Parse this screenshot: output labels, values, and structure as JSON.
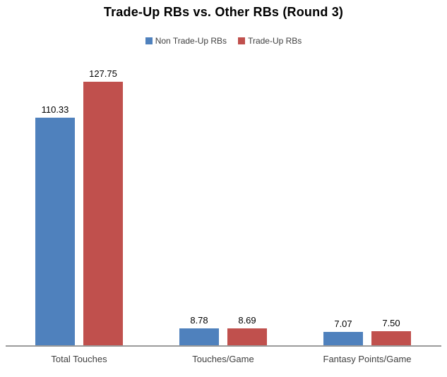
{
  "title": "Trade-Up RBs vs. Other RBs (Round 3)",
  "legend": {
    "items": [
      {
        "label": "Non Trade-Up RBs",
        "color": "#4F81BD"
      },
      {
        "label": "Trade-Up RBs",
        "color": "#C0504D"
      }
    ]
  },
  "chart_data": {
    "type": "bar",
    "title": "Trade-Up RBs vs. Other RBs (Round 3)",
    "categories": [
      "Total Touches",
      "Touches/Game",
      "Fantasy Points/Game"
    ],
    "series": [
      {
        "name": "Non Trade-Up RBs",
        "color": "#4F81BD",
        "values": [
          110.33,
          8.78,
          7.07
        ]
      },
      {
        "name": "Trade-Up RBs",
        "color": "#C0504D",
        "values": [
          127.75,
          8.69,
          7.5
        ]
      }
    ],
    "data_labels": {
      "visible": true,
      "format": "2-decimals",
      "values": [
        [
          "110.33",
          "8.78",
          "7.07"
        ],
        [
          "127.75",
          "8.69",
          "7.50"
        ]
      ]
    },
    "xlabel": "",
    "ylabel": "",
    "ylim": [
      0,
      140
    ],
    "grid": false,
    "y_axis_visible": false,
    "legend_position": "top",
    "axis_line_color": "#9B9B9B",
    "background_color": "#FFFFFF"
  }
}
